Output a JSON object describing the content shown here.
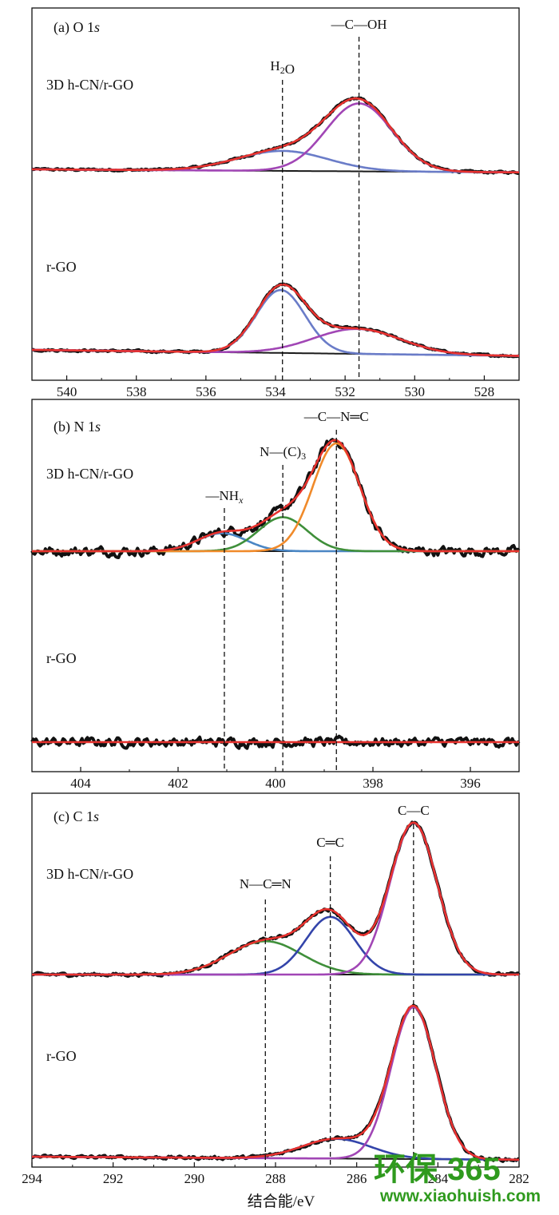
{
  "xlabel": "结合能/eV",
  "watermark": {
    "brand_cn": "环保",
    "brand_num": "365",
    "url": "www.xiaohuish.com",
    "color": "#2f9a1e"
  },
  "colors": {
    "raw": "#111111",
    "fit": "#e8322e",
    "baseline": "#1a1a1a",
    "purple": "#a146b5",
    "lightblue": "#6a7cc8",
    "blue": "#3344aa",
    "orange": "#f08a2a",
    "green": "#3f8f3a",
    "steel": "#4a86c4"
  },
  "chart_data": [
    {
      "type": "line",
      "panel": "a",
      "title": "(a) O 1s",
      "xlim": [
        541,
        527
      ],
      "xticks": [
        540,
        538,
        536,
        534,
        532,
        530,
        528
      ],
      "peak_lines": [
        {
          "x": 533.8,
          "label": "H2O"
        },
        {
          "x": 531.6,
          "label": "—C—OH"
        }
      ],
      "samples": [
        {
          "name": "3D h-CN/r-GO",
          "baseline": {
            "left": 0.0,
            "right": -0.03
          },
          "components": [
            {
              "color_key": "lightblue",
              "center": 533.8,
              "sigma": 1.3,
              "amp": 0.2
            },
            {
              "color_key": "purple",
              "center": 531.6,
              "sigma": 0.95,
              "amp": 0.68
            }
          ]
        },
        {
          "name": "r-GO",
          "baseline": {
            "left": 0.0,
            "right": -0.06
          },
          "components": [
            {
              "color_key": "lightblue",
              "center": 533.85,
              "sigma": 0.7,
              "amp": 0.63
            },
            {
              "color_key": "purple",
              "center": 531.65,
              "sigma": 1.25,
              "amp": 0.25
            }
          ]
        }
      ]
    },
    {
      "type": "line",
      "panel": "b",
      "title": "(b) N 1s",
      "xlim": [
        405,
        395
      ],
      "xticks": [
        404,
        402,
        400,
        398,
        396
      ],
      "peak_lines": [
        {
          "x": 401.05,
          "label": "—NHx"
        },
        {
          "x": 399.85,
          "label": "N—(C)3"
        },
        {
          "x": 398.75,
          "label": "—C—N═C"
        }
      ],
      "samples": [
        {
          "name": "3D h-CN/r-GO",
          "baseline": {
            "left": 0.0,
            "right": 0.0
          },
          "components": [
            {
              "color_key": "steel",
              "center": 401.1,
              "sigma": 0.5,
              "amp": 0.09
            },
            {
              "color_key": "green",
              "center": 399.85,
              "sigma": 0.5,
              "amp": 0.17
            },
            {
              "color_key": "orange",
              "center": 398.75,
              "sigma": 0.48,
              "amp": 0.54
            }
          ]
        },
        {
          "name": "r-GO",
          "baseline": {
            "left": 0.0,
            "right": 0.0
          },
          "components": []
        }
      ]
    },
    {
      "type": "line",
      "panel": "c",
      "title": "(c) C 1s",
      "xlim": [
        294,
        282
      ],
      "xticks": [
        294,
        292,
        290,
        288,
        286,
        284,
        282
      ],
      "peak_lines": [
        {
          "x": 288.25,
          "label": "N—C═N"
        },
        {
          "x": 286.65,
          "label": "C═C"
        },
        {
          "x": 284.6,
          "label": "C—C"
        }
      ],
      "samples": [
        {
          "name": "3D h-CN/r-GO",
          "baseline": {
            "left": 0.0,
            "right": 0.0
          },
          "components": [
            {
              "color_key": "green",
              "center": 288.25,
              "sigma": 0.9,
              "amp": 0.22
            },
            {
              "color_key": "blue",
              "center": 286.65,
              "sigma": 0.6,
              "amp": 0.38
            },
            {
              "color_key": "purple",
              "center": 284.6,
              "sigma": 0.58,
              "amp": 1.0
            }
          ]
        },
        {
          "name": "r-GO",
          "baseline": {
            "left": 0.0,
            "right": -0.02
          },
          "components": [
            {
              "color_key": "blue",
              "center": 286.5,
              "sigma": 0.85,
              "amp": 0.13
            },
            {
              "color_key": "purple",
              "center": 284.6,
              "sigma": 0.55,
              "amp": 1.0
            }
          ]
        }
      ]
    }
  ]
}
